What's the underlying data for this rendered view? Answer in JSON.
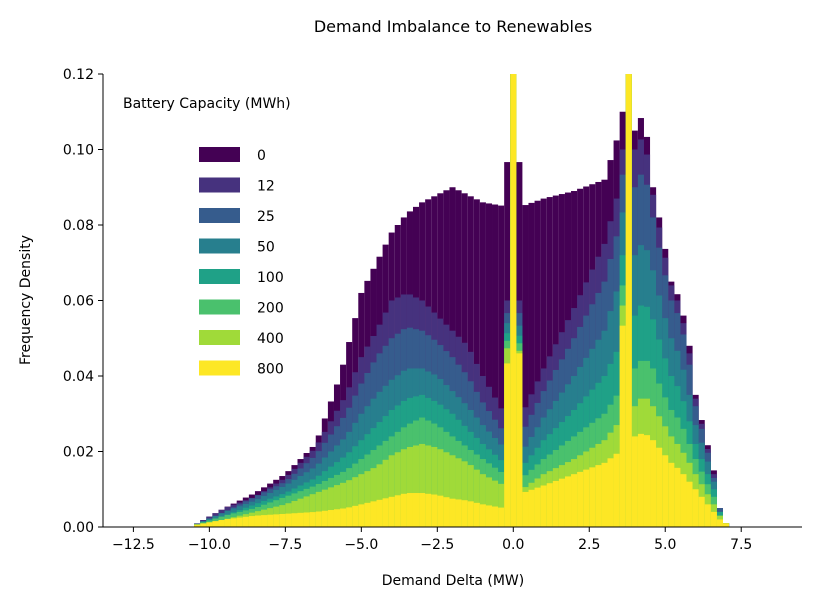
{
  "chart_data": {
    "type": "histogram",
    "title": "Demand Imbalance to Renewables",
    "xlabel": "Demand Delta (MW)",
    "ylabel": "Frequency Density",
    "xlim": [
      -13.5,
      9.5
    ],
    "ylim": [
      0,
      0.12
    ],
    "xticks": [
      -12.5,
      -10.0,
      -7.5,
      -5.0,
      -2.5,
      0.0,
      2.5,
      5.0,
      7.5
    ],
    "xtick_labels": [
      "−12.5",
      "−10.0",
      "−7.5",
      "−5.0",
      "−2.5",
      "0.0",
      "2.5",
      "5.0",
      "7.5"
    ],
    "yticks": [
      0.0,
      0.02,
      0.04,
      0.06,
      0.08,
      0.1,
      0.12
    ],
    "ytick_labels": [
      "0.00",
      "0.02",
      "0.04",
      "0.06",
      "0.08",
      "0.10",
      "0.12"
    ],
    "legend": {
      "title": "Battery Capacity (MWh)",
      "placement": "upper-left"
    },
    "bin_width": 0.2,
    "series": [
      {
        "name": "0",
        "color": "#440154",
        "points": [
          [
            -10.5,
            0.0005
          ],
          [
            -9.5,
            0.005
          ],
          [
            -8.5,
            0.009
          ],
          [
            -7.5,
            0.014
          ],
          [
            -6.5,
            0.022
          ],
          [
            -5.7,
            0.04
          ],
          [
            -5.3,
            0.052
          ],
          [
            -5.0,
            0.062
          ],
          [
            -4.5,
            0.07
          ],
          [
            -4.0,
            0.078
          ],
          [
            -3.5,
            0.083
          ],
          [
            -3.0,
            0.086
          ],
          [
            -2.5,
            0.088
          ],
          [
            -2.0,
            0.09
          ],
          [
            -1.5,
            0.088
          ],
          [
            -1.0,
            0.086
          ],
          [
            -0.3,
            0.085
          ],
          [
            0.0,
            0.12
          ],
          [
            0.3,
            0.085
          ],
          [
            1.0,
            0.087
          ],
          [
            2.0,
            0.089
          ],
          [
            3.0,
            0.092
          ],
          [
            3.5,
            0.105
          ],
          [
            3.8,
            0.12
          ],
          [
            4.0,
            0.105
          ],
          [
            4.3,
            0.11
          ],
          [
            4.6,
            0.09
          ],
          [
            4.9,
            0.078
          ],
          [
            5.2,
            0.065
          ],
          [
            5.5,
            0.06
          ],
          [
            5.8,
            0.048
          ],
          [
            6.0,
            0.035
          ],
          [
            6.3,
            0.025
          ],
          [
            6.6,
            0.015
          ],
          [
            6.8,
            0.005
          ],
          [
            7.0,
            0.001
          ]
        ]
      },
      {
        "name": "12",
        "color": "#46327e",
        "points": [
          [
            -10.5,
            0.0005
          ],
          [
            -9.5,
            0.005
          ],
          [
            -8.5,
            0.008
          ],
          [
            -7.5,
            0.013
          ],
          [
            -6.5,
            0.021
          ],
          [
            -5.5,
            0.035
          ],
          [
            -5.0,
            0.045
          ],
          [
            -4.5,
            0.052
          ],
          [
            -4.0,
            0.06
          ],
          [
            -3.5,
            0.062
          ],
          [
            -3.0,
            0.06
          ],
          [
            -2.5,
            0.056
          ],
          [
            -2.0,
            0.052
          ],
          [
            -1.5,
            0.048
          ],
          [
            -1.0,
            0.04
          ],
          [
            -0.3,
            0.03
          ],
          [
            0.0,
            0.12
          ],
          [
            0.3,
            0.03
          ],
          [
            1.0,
            0.042
          ],
          [
            2.0,
            0.058
          ],
          [
            3.0,
            0.075
          ],
          [
            3.5,
            0.09
          ],
          [
            3.8,
            0.12
          ],
          [
            4.0,
            0.1
          ],
          [
            4.3,
            0.104
          ],
          [
            4.6,
            0.088
          ],
          [
            4.9,
            0.075
          ],
          [
            5.2,
            0.064
          ],
          [
            5.5,
            0.058
          ],
          [
            5.8,
            0.046
          ],
          [
            6.0,
            0.034
          ],
          [
            6.3,
            0.024
          ],
          [
            6.6,
            0.014
          ],
          [
            6.8,
            0.005
          ],
          [
            7.0,
            0.001
          ]
        ]
      },
      {
        "name": "25",
        "color": "#365c8d",
        "points": [
          [
            -10.5,
            0.0005
          ],
          [
            -9.5,
            0.004
          ],
          [
            -8.5,
            0.008
          ],
          [
            -7.5,
            0.012
          ],
          [
            -6.5,
            0.019
          ],
          [
            -5.5,
            0.03
          ],
          [
            -5.0,
            0.038
          ],
          [
            -4.5,
            0.045
          ],
          [
            -4.0,
            0.05
          ],
          [
            -3.5,
            0.053
          ],
          [
            -3.0,
            0.052
          ],
          [
            -2.5,
            0.049
          ],
          [
            -2.0,
            0.045
          ],
          [
            -1.5,
            0.04
          ],
          [
            -1.0,
            0.033
          ],
          [
            -0.3,
            0.025
          ],
          [
            0.0,
            0.12
          ],
          [
            0.3,
            0.025
          ],
          [
            1.0,
            0.036
          ],
          [
            2.0,
            0.05
          ],
          [
            3.0,
            0.065
          ],
          [
            3.5,
            0.08
          ],
          [
            3.8,
            0.12
          ],
          [
            4.0,
            0.09
          ],
          [
            4.3,
            0.095
          ],
          [
            4.6,
            0.082
          ],
          [
            4.9,
            0.07
          ],
          [
            5.2,
            0.06
          ],
          [
            5.5,
            0.055
          ],
          [
            5.8,
            0.043
          ],
          [
            6.0,
            0.032
          ],
          [
            6.3,
            0.023
          ],
          [
            6.6,
            0.013
          ],
          [
            6.8,
            0.005
          ],
          [
            7.0,
            0.001
          ]
        ]
      },
      {
        "name": "50",
        "color": "#277f8e",
        "points": [
          [
            -10.5,
            0.0005
          ],
          [
            -9.5,
            0.004
          ],
          [
            -8.5,
            0.007
          ],
          [
            -7.5,
            0.011
          ],
          [
            -6.5,
            0.016
          ],
          [
            -5.5,
            0.024
          ],
          [
            -5.0,
            0.03
          ],
          [
            -4.5,
            0.035
          ],
          [
            -4.0,
            0.039
          ],
          [
            -3.5,
            0.042
          ],
          [
            -3.0,
            0.042
          ],
          [
            -2.5,
            0.04
          ],
          [
            -2.0,
            0.036
          ],
          [
            -1.5,
            0.032
          ],
          [
            -1.0,
            0.027
          ],
          [
            -0.3,
            0.021
          ],
          [
            0.0,
            0.12
          ],
          [
            0.3,
            0.02
          ],
          [
            1.0,
            0.029
          ],
          [
            2.0,
            0.04
          ],
          [
            3.0,
            0.052
          ],
          [
            3.5,
            0.065
          ],
          [
            3.8,
            0.12
          ],
          [
            4.0,
            0.072
          ],
          [
            4.3,
            0.076
          ],
          [
            4.6,
            0.068
          ],
          [
            4.9,
            0.058
          ],
          [
            5.2,
            0.05
          ],
          [
            5.5,
            0.045
          ],
          [
            5.8,
            0.035
          ],
          [
            6.0,
            0.027
          ],
          [
            6.3,
            0.02
          ],
          [
            6.6,
            0.012
          ],
          [
            6.8,
            0.004
          ],
          [
            7.0,
            0.001
          ]
        ]
      },
      {
        "name": "100",
        "color": "#1fa187",
        "points": [
          [
            -10.5,
            0.0005
          ],
          [
            -9.5,
            0.003
          ],
          [
            -8.5,
            0.006
          ],
          [
            -7.5,
            0.009
          ],
          [
            -6.5,
            0.013
          ],
          [
            -5.5,
            0.019
          ],
          [
            -5.0,
            0.023
          ],
          [
            -4.5,
            0.027
          ],
          [
            -4.0,
            0.031
          ],
          [
            -3.5,
            0.034
          ],
          [
            -3.0,
            0.035
          ],
          [
            -2.5,
            0.033
          ],
          [
            -2.0,
            0.03
          ],
          [
            -1.5,
            0.026
          ],
          [
            -1.0,
            0.022
          ],
          [
            -0.3,
            0.017
          ],
          [
            0.0,
            0.12
          ],
          [
            0.3,
            0.016
          ],
          [
            1.0,
            0.023
          ],
          [
            2.0,
            0.031
          ],
          [
            3.0,
            0.04
          ],
          [
            3.5,
            0.048
          ],
          [
            3.8,
            0.12
          ],
          [
            4.0,
            0.056
          ],
          [
            4.3,
            0.06
          ],
          [
            4.6,
            0.055
          ],
          [
            4.9,
            0.047
          ],
          [
            5.2,
            0.04
          ],
          [
            5.5,
            0.036
          ],
          [
            5.8,
            0.028
          ],
          [
            6.0,
            0.022
          ],
          [
            6.3,
            0.016
          ],
          [
            6.6,
            0.01
          ],
          [
            6.8,
            0.004
          ],
          [
            7.0,
            0.001
          ]
        ]
      },
      {
        "name": "200",
        "color": "#4ac16d",
        "points": [
          [
            -10.5,
            0.0005
          ],
          [
            -9.5,
            0.003
          ],
          [
            -8.5,
            0.005
          ],
          [
            -7.5,
            0.008
          ],
          [
            -6.5,
            0.011
          ],
          [
            -5.5,
            0.015
          ],
          [
            -5.0,
            0.018
          ],
          [
            -4.5,
            0.021
          ],
          [
            -4.0,
            0.024
          ],
          [
            -3.5,
            0.027
          ],
          [
            -3.0,
            0.029
          ],
          [
            -2.5,
            0.027
          ],
          [
            -2.0,
            0.024
          ],
          [
            -1.5,
            0.021
          ],
          [
            -1.0,
            0.018
          ],
          [
            -0.3,
            0.014
          ],
          [
            0.0,
            0.12
          ],
          [
            0.3,
            0.013
          ],
          [
            1.0,
            0.018
          ],
          [
            2.0,
            0.024
          ],
          [
            3.0,
            0.03
          ],
          [
            3.5,
            0.036
          ],
          [
            3.8,
            0.12
          ],
          [
            4.0,
            0.042
          ],
          [
            4.3,
            0.045
          ],
          [
            4.6,
            0.042
          ],
          [
            4.9,
            0.036
          ],
          [
            5.2,
            0.031
          ],
          [
            5.5,
            0.028
          ],
          [
            5.8,
            0.022
          ],
          [
            6.0,
            0.018
          ],
          [
            6.3,
            0.013
          ],
          [
            6.6,
            0.008
          ],
          [
            6.8,
            0.003
          ],
          [
            7.0,
            0.001
          ]
        ]
      },
      {
        "name": "400",
        "color": "#a0da39",
        "points": [
          [
            -10.5,
            0.0005
          ],
          [
            -9.5,
            0.002
          ],
          [
            -8.5,
            0.004
          ],
          [
            -7.5,
            0.006
          ],
          [
            -6.5,
            0.009
          ],
          [
            -5.5,
            0.012
          ],
          [
            -5.0,
            0.014
          ],
          [
            -4.5,
            0.016
          ],
          [
            -4.0,
            0.019
          ],
          [
            -3.5,
            0.021
          ],
          [
            -3.0,
            0.022
          ],
          [
            -2.5,
            0.021
          ],
          [
            -2.0,
            0.019
          ],
          [
            -1.5,
            0.017
          ],
          [
            -1.0,
            0.014
          ],
          [
            -0.3,
            0.011
          ],
          [
            0.0,
            0.12
          ],
          [
            0.3,
            0.01
          ],
          [
            1.0,
            0.014
          ],
          [
            2.0,
            0.018
          ],
          [
            3.0,
            0.023
          ],
          [
            3.5,
            0.028
          ],
          [
            3.8,
            0.12
          ],
          [
            4.0,
            0.032
          ],
          [
            4.3,
            0.035
          ],
          [
            4.6,
            0.032
          ],
          [
            4.9,
            0.028
          ],
          [
            5.2,
            0.024
          ],
          [
            5.5,
            0.021
          ],
          [
            5.8,
            0.017
          ],
          [
            6.0,
            0.014
          ],
          [
            6.3,
            0.01
          ],
          [
            6.6,
            0.006
          ],
          [
            6.8,
            0.003
          ],
          [
            7.0,
            0.001
          ]
        ]
      },
      {
        "name": "800",
        "color": "#fde725",
        "points": [
          [
            -10.5,
            0.0005
          ],
          [
            -9.5,
            0.002
          ],
          [
            -8.5,
            0.003
          ],
          [
            -7.5,
            0.0035
          ],
          [
            -6.5,
            0.004
          ],
          [
            -5.5,
            0.005
          ],
          [
            -5.0,
            0.006
          ],
          [
            -4.5,
            0.007
          ],
          [
            -4.0,
            0.008
          ],
          [
            -3.5,
            0.009
          ],
          [
            -3.0,
            0.009
          ],
          [
            -2.5,
            0.0085
          ],
          [
            -2.0,
            0.0075
          ],
          [
            -1.5,
            0.007
          ],
          [
            -1.0,
            0.006
          ],
          [
            -0.3,
            0.005
          ],
          [
            0.0,
            0.12
          ],
          [
            0.3,
            0.009
          ],
          [
            1.0,
            0.011
          ],
          [
            2.0,
            0.014
          ],
          [
            3.0,
            0.017
          ],
          [
            3.5,
            0.02
          ],
          [
            3.8,
            0.12
          ],
          [
            4.0,
            0.024
          ],
          [
            4.3,
            0.025
          ],
          [
            4.6,
            0.023
          ],
          [
            4.9,
            0.02
          ],
          [
            5.2,
            0.017
          ],
          [
            5.5,
            0.015
          ],
          [
            5.8,
            0.012
          ],
          [
            6.0,
            0.01
          ],
          [
            6.3,
            0.007
          ],
          [
            6.6,
            0.004
          ],
          [
            6.8,
            0.002
          ],
          [
            7.0,
            0.001
          ]
        ]
      }
    ]
  }
}
